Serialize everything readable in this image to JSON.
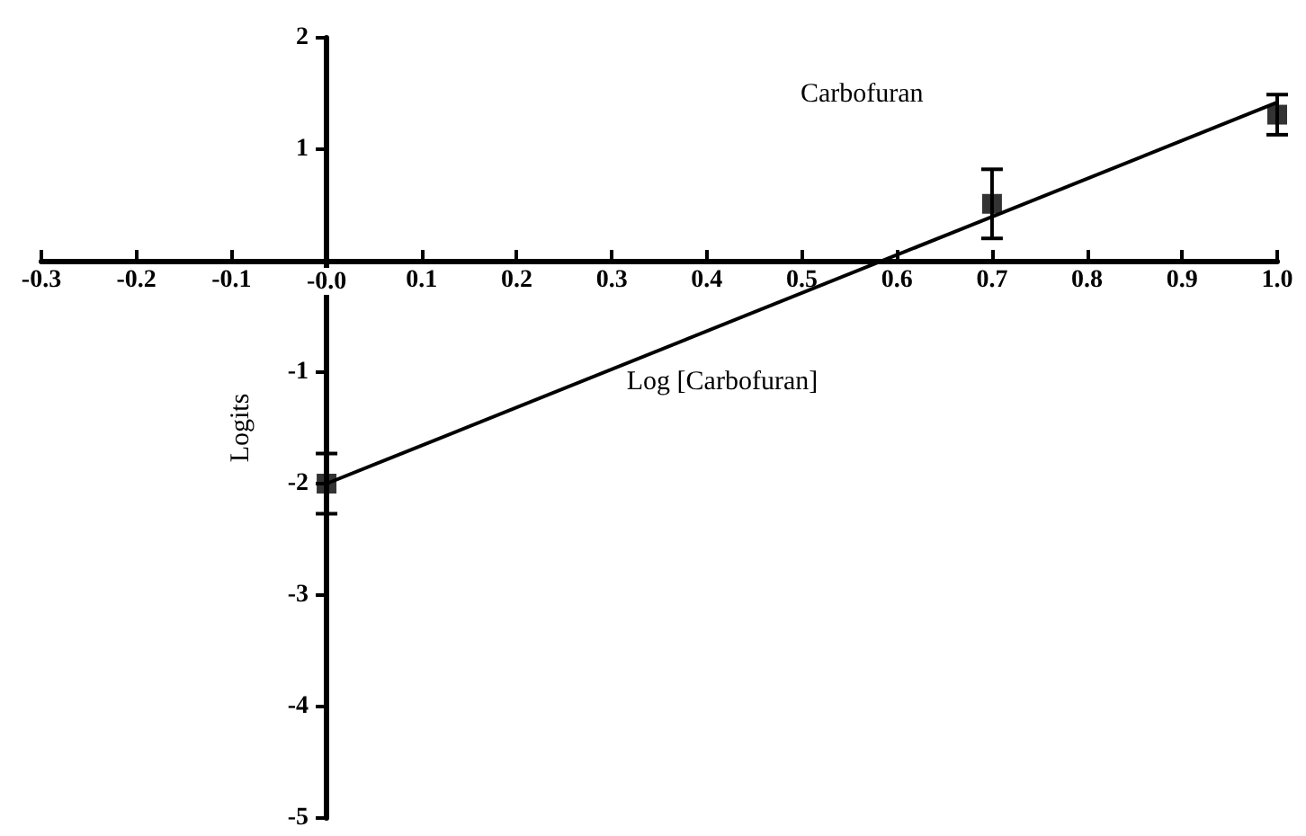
{
  "chart_data": {
    "type": "scatter",
    "title": "Carbofuran",
    "xlabel": "Log [Carbofuran]",
    "ylabel": "Logits",
    "series": [
      {
        "color": "#000000",
        "x": [
          0,
          0.7,
          1.0
        ],
        "values": [
          -2.0,
          0.51,
          1.31
        ],
        "errors": [
          0.27,
          0.31,
          0.18
        ],
        "marker": "square"
      },
      {
        "type": "line",
        "color": "#000000",
        "x": [
          0,
          1.0
        ],
        "values": [
          -2.0,
          1.42
        ],
        "marker": "none",
        "line_style": "solid"
      }
    ],
    "xlim": [
      -0.3,
      1.0
    ],
    "xticks": [
      -0.3,
      -0.2,
      -0.1,
      {
        "value": 0,
        "label": "-0.0"
      },
      0.1,
      0.2,
      0.3,
      0.4,
      0.5,
      0.6,
      0.7,
      0.8,
      0.9,
      {
        "value": 1,
        "label": "1.0"
      }
    ],
    "ylim": [
      -5,
      2
    ],
    "yticks": [
      -5,
      -4,
      -3,
      -2,
      -1,
      1,
      2
    ],
    "grid": false
  }
}
